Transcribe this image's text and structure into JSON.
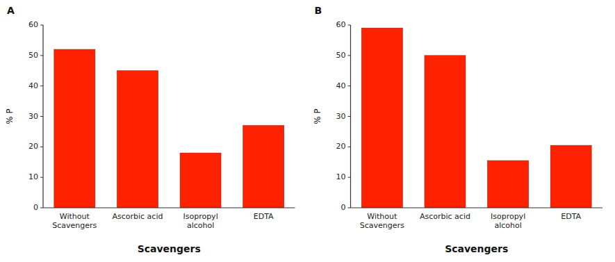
{
  "chart_data": [
    {
      "type": "bar",
      "title": "A",
      "categories": [
        "Without Scavengers",
        "Ascorbic acid",
        "Isopropyl alcohol",
        "EDTA"
      ],
      "values": [
        52,
        45,
        18,
        27
      ],
      "color": "#ff2200",
      "xlabel": "Scavengers",
      "ylabel": "% P",
      "ylim": [
        0,
        60
      ],
      "yticks": [
        0,
        10,
        20,
        30,
        40,
        50,
        60
      ],
      "grid": false
    },
    {
      "type": "bar",
      "title": "B",
      "categories": [
        "Without Scavengers",
        "Ascorbic acid",
        "Isopropyl alcohol",
        "EDTA"
      ],
      "values": [
        59,
        50,
        15.5,
        20.5
      ],
      "color": "#ff2200",
      "xlabel": "Scavengers",
      "ylabel": "% P",
      "ylim": [
        0,
        60
      ],
      "yticks": [
        0,
        10,
        20,
        30,
        40,
        50,
        60
      ],
      "grid": false
    }
  ]
}
